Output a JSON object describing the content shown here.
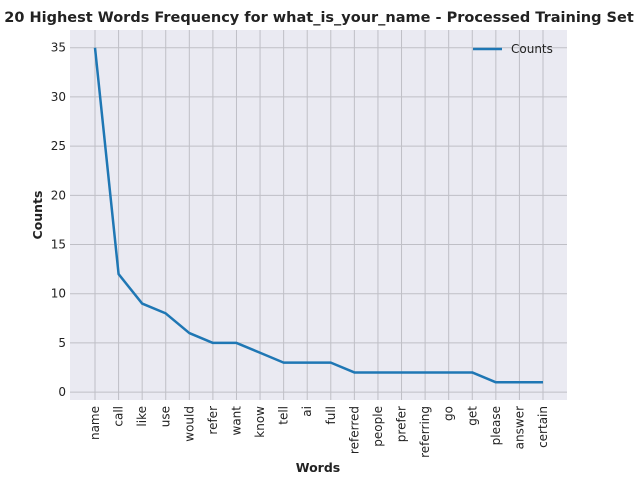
{
  "chart_data": {
    "type": "line",
    "title": "20 Highest Words Frequency for what_is_your_name - Processed Training Set",
    "xlabel": "Words",
    "ylabel": "Counts",
    "categories": [
      "name",
      "call",
      "like",
      "use",
      "would",
      "refer",
      "want",
      "know",
      "tell",
      "ai",
      "full",
      "referred",
      "people",
      "prefer",
      "referring",
      "go",
      "get",
      "please",
      "answer",
      "certain"
    ],
    "series": [
      {
        "name": "Counts",
        "values": [
          35,
          12,
          9,
          8,
          6,
          5,
          5,
          4,
          3,
          3,
          3,
          2,
          2,
          2,
          2,
          2,
          2,
          1,
          1,
          1
        ]
      }
    ],
    "yticks": [
      0,
      5,
      10,
      15,
      20,
      25,
      30,
      35
    ],
    "ylim": [
      -0.8,
      36.8
    ],
    "grid": true,
    "legend_position": "top-right",
    "colors": {
      "line": "#1f77b4",
      "plot_bg": "#eaeaf2",
      "grid": "#bfbfc6"
    }
  }
}
